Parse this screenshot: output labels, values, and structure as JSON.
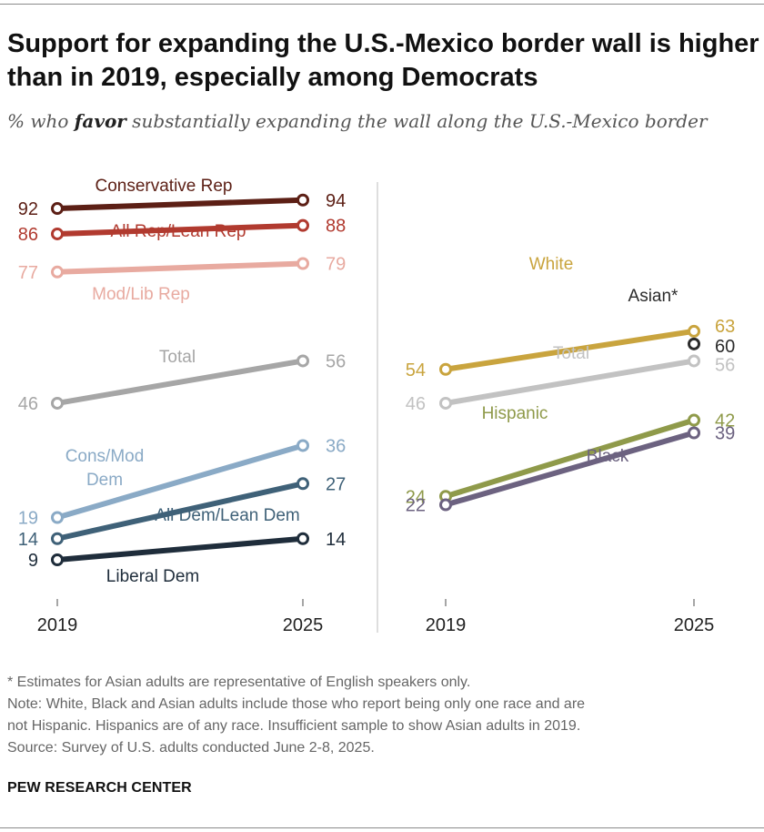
{
  "title": "Support for expanding the U.S.-Mexico border wall is higher than in 2019, especially among Democrats",
  "subtitle": {
    "pre": "% who ",
    "emph": "favor",
    "post": " substantially expanding the wall along the U.S.-Mexico border"
  },
  "notes": {
    "footnote": "* Estimates for Asian adults are representative of English speakers only.",
    "note_line1": "Note: White, Black and Asian adults include those who report being only one race and are",
    "note_line2": "not Hispanic. Hispanics are of any race. Insufficient sample to show Asian adults in 2019.",
    "source": "Source: Survey of U.S. adults conducted June 2-8, 2025."
  },
  "brand": "PEW RESEARCH CENTER",
  "chart_data": [
    {
      "type": "line",
      "panel": "left",
      "x": [
        "2019",
        "2025"
      ],
      "ylim": [
        5,
        100
      ],
      "series": [
        {
          "name": "Conservative Rep",
          "values": [
            92,
            94
          ],
          "color": "#5c1f15"
        },
        {
          "name": "All Rep/Lean Rep",
          "values": [
            86,
            88
          ],
          "color": "#b13a2f"
        },
        {
          "name": "Mod/Lib Rep",
          "values": [
            77,
            79
          ],
          "color": "#e8aaa0"
        },
        {
          "name": "Total",
          "values": [
            46,
            56
          ],
          "color": "#a6a6a6"
        },
        {
          "name": "Cons/Mod Dem",
          "values": [
            19,
            36
          ],
          "color": "#8aaac6"
        },
        {
          "name": "All Dem/Lean Dem",
          "values": [
            14,
            27
          ],
          "color": "#3f6178"
        },
        {
          "name": "Liberal Dem",
          "values": [
            9,
            14
          ],
          "color": "#1f2d3b"
        }
      ]
    },
    {
      "type": "line",
      "panel": "right",
      "x": [
        "2019",
        "2025"
      ],
      "ylim": [
        5,
        100
      ],
      "series": [
        {
          "name": "White",
          "values": [
            54,
            63
          ],
          "color": "#c9a43e"
        },
        {
          "name": "Asian*",
          "values": [
            null,
            60
          ],
          "color": "#2b2b2b"
        },
        {
          "name": "Total",
          "values": [
            46,
            56
          ],
          "color": "#c2c2c2"
        },
        {
          "name": "Hispanic",
          "values": [
            24,
            42
          ],
          "color": "#8f9a4a"
        },
        {
          "name": "Black",
          "values": [
            22,
            39
          ],
          "color": "#6c6280"
        }
      ]
    }
  ]
}
